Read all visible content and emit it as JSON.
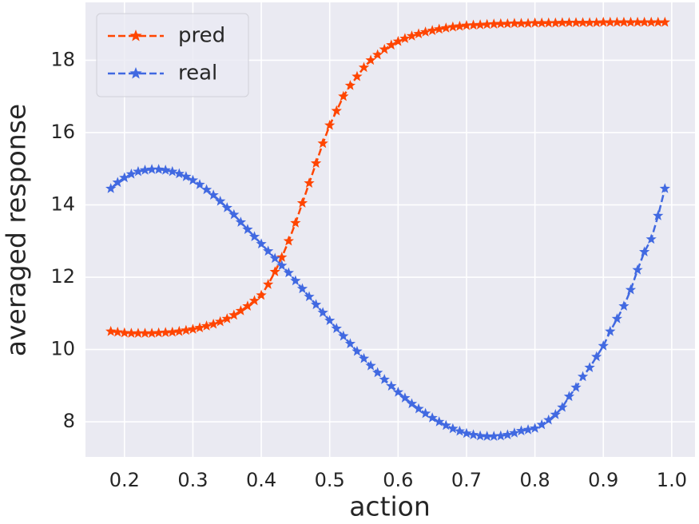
{
  "chart_data": {
    "type": "line",
    "xlabel": "action",
    "ylabel": "averaged response",
    "x": [
      0.18,
      0.19,
      0.2,
      0.21,
      0.22,
      0.23,
      0.24,
      0.25,
      0.26,
      0.27,
      0.28,
      0.29,
      0.3,
      0.31,
      0.32,
      0.33,
      0.34,
      0.35,
      0.36,
      0.37,
      0.38,
      0.39,
      0.4,
      0.41,
      0.42,
      0.43,
      0.44,
      0.45,
      0.46,
      0.47,
      0.48,
      0.49,
      0.5,
      0.51,
      0.52,
      0.53,
      0.54,
      0.55,
      0.56,
      0.57,
      0.58,
      0.59,
      0.6,
      0.61,
      0.62,
      0.63,
      0.64,
      0.65,
      0.66,
      0.67,
      0.68,
      0.69,
      0.7,
      0.71,
      0.72,
      0.73,
      0.74,
      0.75,
      0.76,
      0.77,
      0.78,
      0.79,
      0.8,
      0.81,
      0.82,
      0.83,
      0.84,
      0.85,
      0.86,
      0.87,
      0.88,
      0.89,
      0.9,
      0.91,
      0.92,
      0.93,
      0.94,
      0.95,
      0.96,
      0.97,
      0.98,
      0.99
    ],
    "series": [
      {
        "name": "pred",
        "color": "#ff4500",
        "values": [
          10.5,
          10.48,
          10.46,
          10.45,
          10.45,
          10.45,
          10.45,
          10.46,
          10.47,
          10.48,
          10.5,
          10.53,
          10.56,
          10.6,
          10.65,
          10.7,
          10.77,
          10.85,
          10.95,
          11.07,
          11.2,
          11.35,
          11.5,
          11.8,
          12.15,
          12.55,
          13.0,
          13.5,
          14.05,
          14.6,
          15.15,
          15.7,
          16.2,
          16.6,
          17.0,
          17.3,
          17.55,
          17.8,
          18.0,
          18.15,
          18.3,
          18.42,
          18.52,
          18.6,
          18.67,
          18.73,
          18.78,
          18.82,
          18.86,
          18.89,
          18.92,
          18.94,
          18.96,
          18.97,
          18.98,
          18.99,
          19.0,
          19.01,
          19.01,
          19.02,
          19.02,
          19.02,
          19.03,
          19.03,
          19.03,
          19.03,
          19.04,
          19.04,
          19.04,
          19.04,
          19.04,
          19.04,
          19.05,
          19.05,
          19.05,
          19.05,
          19.05,
          19.05,
          19.05,
          19.05,
          19.05,
          19.05
        ]
      },
      {
        "name": "real",
        "color": "#4169e1",
        "values": [
          14.45,
          14.62,
          14.75,
          14.85,
          14.92,
          14.96,
          14.98,
          14.98,
          14.96,
          14.92,
          14.86,
          14.78,
          14.68,
          14.56,
          14.42,
          14.27,
          14.1,
          13.92,
          13.73,
          13.52,
          13.32,
          13.12,
          12.92,
          12.72,
          12.52,
          12.32,
          12.12,
          11.9,
          11.68,
          11.46,
          11.24,
          11.02,
          10.8,
          10.58,
          10.37,
          10.16,
          9.95,
          9.75,
          9.55,
          9.36,
          9.17,
          8.99,
          8.82,
          8.66,
          8.5,
          8.36,
          8.23,
          8.11,
          8.0,
          7.9,
          7.81,
          7.74,
          7.68,
          7.64,
          7.61,
          7.6,
          7.6,
          7.61,
          7.64,
          7.69,
          7.75,
          7.78,
          7.82,
          7.92,
          8.05,
          8.2,
          8.4,
          8.7,
          8.95,
          9.25,
          9.5,
          9.8,
          10.1,
          10.5,
          10.85,
          11.2,
          11.65,
          12.2,
          12.7,
          13.05,
          13.7,
          14.45
        ]
      }
    ],
    "xlim": [
      0.143,
      1.034
    ],
    "ylim": [
      7.03,
      19.6
    ],
    "xticks": [
      0.2,
      0.3,
      0.4,
      0.5,
      0.6,
      0.7,
      0.8,
      0.9,
      {
        "value": 1,
        "label": "1.0"
      }
    ],
    "yticks": [
      8,
      10,
      12,
      14,
      16,
      18
    ],
    "grid": true,
    "legend": "upper left"
  }
}
